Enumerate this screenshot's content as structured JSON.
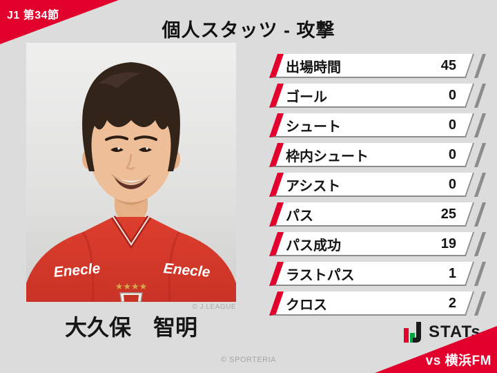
{
  "header": {
    "badge": "J1 第34節",
    "title": "個人スタッツ - 攻撃"
  },
  "player": {
    "name": "大久保　智明",
    "photo_credit": "© J.LEAGUE",
    "jersey_sponsor": "Enecle",
    "jersey_stars": "★★★★"
  },
  "stats": [
    {
      "label": "出場時間",
      "value": "45"
    },
    {
      "label": "ゴール",
      "value": "0"
    },
    {
      "label": "シュート",
      "value": "0"
    },
    {
      "label": "枠内シュート",
      "value": "0"
    },
    {
      "label": "アシスト",
      "value": "0"
    },
    {
      "label": "パス",
      "value": "25"
    },
    {
      "label": "パス成功",
      "value": "19"
    },
    {
      "label": "ラストパス",
      "value": "1"
    },
    {
      "label": "クロス",
      "value": "2"
    }
  ],
  "footer": {
    "logo_text": "STATs",
    "credit": "© SPORTERIA",
    "opponent": "vs 横浜FM"
  },
  "colors": {
    "accent_red": "#e2002d",
    "background": "#dcdcdc",
    "row_border_gray": "#8c8c8c",
    "logo_green": "#00a33e",
    "logo_black": "#1a1a1a"
  },
  "chart_data": {
    "type": "table",
    "title": "個人スタッツ - 攻撃",
    "subtitle": "J1 第34節 vs 横浜FM",
    "player": "大久保　智明",
    "categories": [
      "出場時間",
      "ゴール",
      "シュート",
      "枠内シュート",
      "アシスト",
      "パス",
      "パス成功",
      "ラストパス",
      "クロス"
    ],
    "values": [
      45,
      0,
      0,
      0,
      0,
      25,
      19,
      1,
      2
    ]
  }
}
